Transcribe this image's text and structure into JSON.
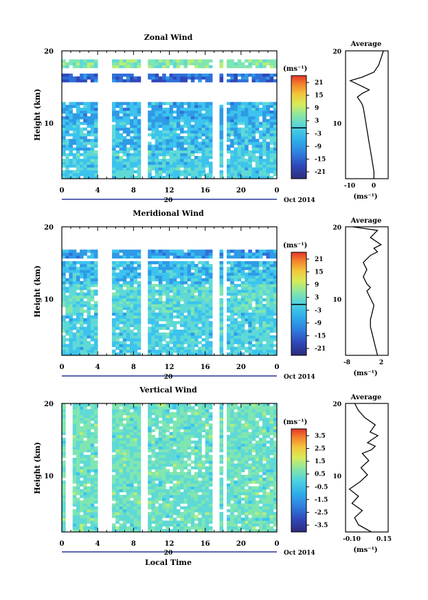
{
  "colors": {
    "colormap": [
      "#2c2c7a",
      "#2f47b8",
      "#2f6fd8",
      "#2f9ae6",
      "#3cc3ee",
      "#5fd9d6",
      "#7fe6b0",
      "#b6ee78",
      "#e8ea4c",
      "#f5b83a",
      "#f27a2c",
      "#e2352a"
    ]
  },
  "panels": [
    {
      "title": "Zonal Wind",
      "ylabel": "Height (km)",
      "yticks": [
        "20",
        "10"
      ],
      "xticks": [
        "0",
        "4",
        "8",
        "12",
        "16",
        "20",
        "0"
      ],
      "date_label": "20",
      "date_suffix": "Oct 2014",
      "cbar_unit": "(ms⁻¹)",
      "cbar_ticks": [
        "21",
        "15",
        "9",
        "3",
        "-3",
        "-9",
        "-15",
        "-21"
      ],
      "avg_title": "Average",
      "avg_yticks": [
        "20",
        "10"
      ],
      "avg_xticks": [
        "-10",
        "0"
      ],
      "avg_unit": "(ms⁻¹)"
    },
    {
      "title": "Meridional Wind",
      "ylabel": "Height (km)",
      "yticks": [
        "20",
        "10"
      ],
      "xticks": [
        "0",
        "4",
        "8",
        "12",
        "16",
        "20",
        "0"
      ],
      "date_label": "20",
      "date_suffix": "Oct 2014",
      "cbar_unit": "(ms⁻¹)",
      "cbar_ticks": [
        "21",
        "15",
        "9",
        "3",
        "-3",
        "-9",
        "-15",
        "-21"
      ],
      "avg_title": "Average",
      "avg_yticks": [
        "20",
        "10"
      ],
      "avg_xticks": [
        "-8",
        "2"
      ],
      "avg_unit": "(ms⁻¹)"
    },
    {
      "title": "Vertical Wind",
      "ylabel": "Height (km)",
      "yticks": [
        "20",
        "10"
      ],
      "xticks": [
        "0",
        "4",
        "8",
        "12",
        "16",
        "20",
        "0"
      ],
      "date_label": "20",
      "date_suffix": "Oct 2014",
      "cbar_unit": "(ms⁻¹)",
      "cbar_ticks": [
        "3.5",
        "2.5",
        "1.5",
        "0.5",
        "-0.5",
        "-1.5",
        "-2.5",
        "-3.5"
      ],
      "avg_title": "Average",
      "avg_yticks": [
        "20",
        "10"
      ],
      "avg_xticks": [
        "-0.10",
        "0.15"
      ],
      "avg_unit": "(ms⁻¹)"
    }
  ],
  "xlabel": "Local Time",
  "chart_data": [
    {
      "type": "heatmap",
      "title": "Zonal Wind",
      "xlabel": "",
      "ylabel": "Height (km)",
      "xlim": [
        0,
        24
      ],
      "ylim": [
        2,
        20
      ],
      "zlim": [
        -24,
        24
      ],
      "gaps_hours": [
        [
          4.3,
          4.7
        ],
        [
          5.2,
          5.6
        ],
        [
          8.8,
          9.4
        ],
        [
          17.1,
          17.3
        ],
        [
          18.0,
          18.3
        ]
      ],
      "height_bands": [
        {
          "z0": 2,
          "z1": 6,
          "value": -4
        },
        {
          "z0": 6,
          "z1": 10,
          "value": -6
        },
        {
          "z0": 10,
          "z1": 12.5,
          "value": -8
        },
        {
          "z0": 15.5,
          "z1": 16.5,
          "value": -15
        },
        {
          "z0": 17.5,
          "z1": 18.5,
          "value": 2
        }
      ]
    },
    {
      "type": "line",
      "title": "Average",
      "xlabel": "(ms⁻¹)",
      "ylabel": "",
      "xlim": [
        -13,
        5
      ],
      "ylim": [
        2,
        20
      ],
      "x": [
        -1,
        -1,
        -1.5,
        -2,
        -2.5,
        -3,
        -3.5,
        -4,
        -4.5,
        -5,
        -5.5,
        -6,
        -7,
        -8,
        -6,
        -3,
        -6,
        -11,
        -6,
        -1,
        1,
        2,
        3
      ],
      "y": [
        2,
        3,
        4,
        5,
        6,
        7,
        8,
        9,
        10,
        11,
        12,
        12.5,
        13,
        13.5,
        14,
        14.5,
        15,
        15.8,
        16.3,
        17,
        18,
        19,
        20
      ]
    },
    {
      "type": "heatmap",
      "title": "Meridional Wind",
      "xlabel": "",
      "ylabel": "Height (km)",
      "xlim": [
        0,
        24
      ],
      "ylim": [
        2,
        20
      ],
      "zlim": [
        -24,
        24
      ],
      "gaps_hours": [
        [
          4.3,
          4.7
        ],
        [
          5.2,
          5.6
        ],
        [
          8.8,
          9.4
        ],
        [
          17.1,
          17.3
        ],
        [
          18.0,
          18.3
        ]
      ],
      "height_bands": [
        {
          "z0": 2,
          "z1": 8,
          "value": -4
        },
        {
          "z0": 8,
          "z1": 12,
          "value": -2
        },
        {
          "z0": 12,
          "z1": 15,
          "value": -6
        },
        {
          "z0": 15.5,
          "z1": 16.5,
          "value": -9
        }
      ]
    },
    {
      "type": "line",
      "title": "Average",
      "xlabel": "(ms⁻¹)",
      "ylabel": "",
      "xlim": [
        -9,
        3
      ],
      "ylim": [
        2,
        20
      ],
      "x": [
        0,
        -0.5,
        -1,
        -1.5,
        -2,
        -2,
        -1.5,
        -1,
        -2,
        -3,
        -2,
        -3,
        -4,
        -3,
        -4,
        -2,
        0,
        -1,
        1,
        -2,
        0,
        -7
      ],
      "y": [
        2,
        3,
        4,
        5,
        6,
        7,
        8,
        9,
        10,
        11,
        11.5,
        12,
        13,
        14,
        15,
        16,
        16.5,
        17,
        17.5,
        18.5,
        19.5,
        20
      ]
    },
    {
      "type": "heatmap",
      "title": "Vertical Wind",
      "xlabel": "Local Time",
      "ylabel": "Height (km)",
      "xlim": [
        0,
        24
      ],
      "ylim": [
        2,
        20
      ],
      "zlim": [
        -4,
        4
      ],
      "gaps_hours": [
        [
          0.5,
          1.0
        ],
        [
          4.3,
          4.7
        ],
        [
          5.2,
          5.6
        ],
        [
          8.8,
          9.4
        ],
        [
          17.1,
          17.3
        ],
        [
          18.0,
          18.3
        ]
      ],
      "height_bands": [
        {
          "z0": 2,
          "z1": 20,
          "value": 0
        }
      ]
    },
    {
      "type": "line",
      "title": "Average",
      "xlabel": "(ms⁻¹)",
      "ylabel": "",
      "xlim": [
        -0.15,
        0.18
      ],
      "ylim": [
        2,
        20
      ],
      "x": [
        0.05,
        -0.05,
        -0.08,
        -0.02,
        -0.1,
        -0.05,
        -0.12,
        -0.04,
        0.02,
        -0.03,
        0.03,
        -0.02,
        0.05,
        0.08,
        0.02,
        0.06,
        0.1,
        0.04,
        0.08,
        0.0,
        -0.05,
        -0.08
      ],
      "y": [
        2,
        3,
        4,
        5,
        6,
        7,
        8,
        9,
        10,
        11,
        12,
        13,
        13.5,
        14,
        14.5,
        15,
        15.5,
        16,
        17,
        18,
        19,
        20
      ]
    }
  ]
}
